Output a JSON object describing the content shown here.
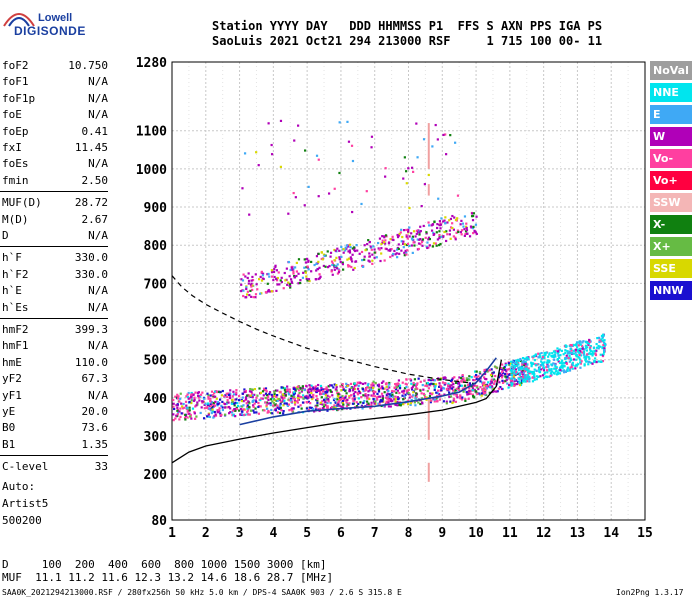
{
  "logo": {
    "line1": "Lowell",
    "line2": "DIGISONDE"
  },
  "header": {
    "line1": "Station YYYY DAY   DDD HHMMSS P1  FFS S AXN PPS IGA PS",
    "line2": "SaoLuis 2021 Oct21 294 213000 RSF     1 715 100 00- 11"
  },
  "params_group1": [
    {
      "k": "foF2",
      "v": "10.750"
    },
    {
      "k": "foF1",
      "v": "N/A"
    },
    {
      "k": "foF1p",
      "v": "N/A"
    },
    {
      "k": "foE",
      "v": "N/A"
    },
    {
      "k": "foEp",
      "v": "0.41"
    },
    {
      "k": "fxI",
      "v": "11.45"
    },
    {
      "k": "foEs",
      "v": "N/A"
    },
    {
      "k": "fmin",
      "v": "2.50"
    }
  ],
  "params_group2": [
    {
      "k": "MUF(D)",
      "v": "28.72"
    },
    {
      "k": "M(D)",
      "v": "2.67"
    },
    {
      "k": "D",
      "v": "N/A"
    }
  ],
  "params_group3": [
    {
      "k": "h`F",
      "v": "330.0"
    },
    {
      "k": "h`F2",
      "v": "330.0"
    },
    {
      "k": "h`E",
      "v": "N/A"
    },
    {
      "k": "h`Es",
      "v": "N/A"
    }
  ],
  "params_group4": [
    {
      "k": "hmF2",
      "v": "399.3"
    },
    {
      "k": "hmF1",
      "v": "N/A"
    },
    {
      "k": "hmE",
      "v": "110.0"
    },
    {
      "k": "yF2",
      "v": "67.3"
    },
    {
      "k": "yF1",
      "v": "N/A"
    },
    {
      "k": "yE",
      "v": "20.0"
    },
    {
      "k": "B0",
      "v": "73.6"
    },
    {
      "k": "B1",
      "v": "1.35"
    }
  ],
  "params_group5": [
    {
      "k": "C-level",
      "v": "33"
    }
  ],
  "autoscale": {
    "line1": "Auto:",
    "line2": "Artist5",
    "line3": "500200"
  },
  "legend": [
    {
      "label": "NoVal",
      "color": "#9e9e9e"
    },
    {
      "label": "NNE",
      "color": "#00e5ee"
    },
    {
      "label": "E",
      "color": "#3fa9f5"
    },
    {
      "label": "W",
      "color": "#b000b8"
    },
    {
      "label": "Vo-",
      "color": "#ff3fa0"
    },
    {
      "label": "Vo+",
      "color": "#ff0040"
    },
    {
      "label": "SSW",
      "color": "#f4b6b6"
    },
    {
      "label": "X-",
      "color": "#108010"
    },
    {
      "label": "X+",
      "color": "#66bb44"
    },
    {
      "label": "SSE",
      "color": "#d8d800"
    },
    {
      "label": "NNW",
      "color": "#1a10d0"
    }
  ],
  "footer": {
    "d_row": "D     100  200  400  600  800 1000 1500 3000 [km]",
    "muf_row": "MUF  11.1 11.2 11.6 12.3 13.2 14.6 18.6 28.7 [MHz]",
    "file_row": "SAA0K_2021294213000.RSF / 280fx256h 50 kHz 5.0 km / DPS-4 SAA0K 903 / 2.6 S 315.8 E",
    "version": "Ion2Png 1.3.17"
  },
  "chart_data": {
    "type": "scatter",
    "xlim": [
      1,
      15
    ],
    "ylim": [
      80,
      1280
    ],
    "x_ticks": [
      1,
      2,
      3,
      4,
      5,
      6,
      7,
      8,
      9,
      10,
      11,
      12,
      13,
      14,
      15
    ],
    "y_ticks": [
      80,
      200,
      300,
      400,
      500,
      600,
      700,
      800,
      900,
      1000,
      1100,
      1280
    ],
    "grid": true,
    "legend_position": "right",
    "profile_curve": {
      "x": [
        1.0,
        1.5,
        2.0,
        3.0,
        4.0,
        5.0,
        6.0,
        7.0,
        8.0,
        9.0,
        10.0,
        10.3,
        10.6,
        10.75
      ],
      "y": [
        230,
        258,
        274,
        292,
        308,
        322,
        336,
        346,
        356,
        368,
        388,
        398,
        430,
        500
      ]
    },
    "dashed_curve": {
      "x": [
        1.0,
        1.3,
        1.6,
        2.0,
        2.5,
        3.0,
        3.5,
        4.0,
        5.0,
        6.0,
        7.0,
        8.0,
        9.0,
        10.0
      ],
      "y": [
        720,
        690,
        668,
        645,
        622,
        600,
        580,
        562,
        530,
        505,
        482,
        462,
        448,
        437
      ]
    },
    "trace_curve": {
      "x": [
        3.0,
        4.0,
        5.0,
        6.0,
        7.0,
        8.0,
        9.0,
        9.5,
        10.0,
        10.3,
        10.6
      ],
      "y": [
        330,
        350,
        365,
        372,
        378,
        390,
        405,
        415,
        440,
        470,
        505
      ]
    },
    "echo_regions": [
      {
        "x": [
          1.0,
          11.5
        ],
        "y": [
          325,
          480
        ],
        "density": "high"
      },
      {
        "x": [
          11.0,
          13.8
        ],
        "y": [
          390,
          450
        ],
        "density": "medium"
      },
      {
        "x": [
          3.0,
          10.0
        ],
        "y": [
          620,
          880
        ],
        "density": "medium"
      },
      {
        "x": [
          3.0,
          9.5
        ],
        "y": [
          880,
          1130
        ],
        "density": "low"
      }
    ],
    "marker_lines": [
      {
        "x": 8.6,
        "y": [
          1000,
          1120
        ]
      },
      {
        "x": 8.6,
        "y": [
          930,
          960
        ]
      },
      {
        "x": 8.6,
        "y": [
          290,
          400
        ]
      },
      {
        "x": 8.6,
        "y": [
          180,
          230
        ]
      }
    ]
  }
}
